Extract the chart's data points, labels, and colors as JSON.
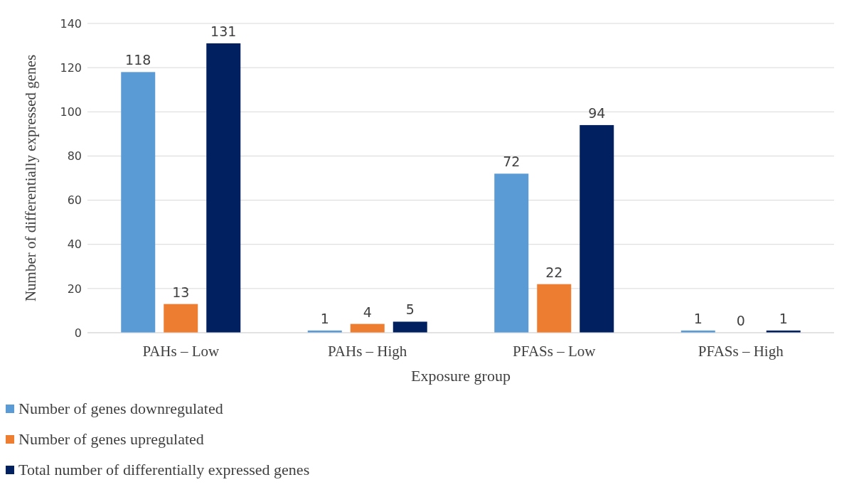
{
  "chart_data": {
    "type": "bar",
    "xlabel": "Exposure group",
    "ylabel": "Number of differentially expressed genes",
    "categories": [
      "PAHs – Low",
      "PAHs – High",
      "PFASs – Low",
      "PFASs – High"
    ],
    "series": [
      {
        "name": "Number of genes downregulated",
        "color": "#5b9bd5",
        "values": [
          118,
          1,
          72,
          1
        ]
      },
      {
        "name": "Number of genes upregulated",
        "color": "#ed7d31",
        "values": [
          13,
          4,
          22,
          0
        ]
      },
      {
        "name": "Total number of differentially expressed genes",
        "color": "#002060",
        "values": [
          131,
          5,
          94,
          1
        ]
      }
    ],
    "ylim": [
      0,
      140
    ],
    "yticks": [
      0,
      20,
      40,
      60,
      80,
      100,
      120,
      140
    ],
    "grid": "y",
    "legend": "bottom",
    "data_labels": true
  }
}
